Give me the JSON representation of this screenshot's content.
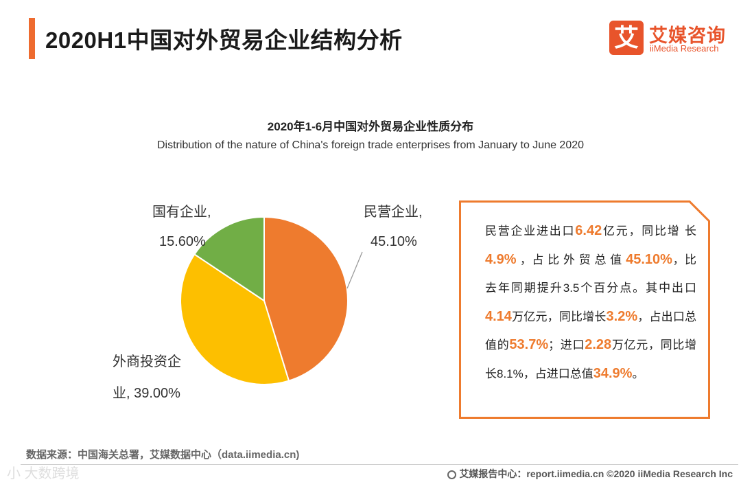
{
  "header": {
    "title": "2020H1中国对外贸易企业结构分析",
    "logo_mark": "艾",
    "logo_cn": "艾媒咨询",
    "logo_en": "iiMedia Research",
    "accent_color": "#ee6b2f"
  },
  "chart_data": {
    "type": "pie",
    "title": "2020年1-6月中国对外贸易企业性质分布",
    "subtitle": "Distribution of the nature of China's foreign trade enterprises from January to June 2020",
    "slices": [
      {
        "label": "民营企业,",
        "value": 45.1,
        "value_label": "45.10%",
        "color": "#ee7b2e"
      },
      {
        "label": "外商投资企",
        "label2": "业, 39.00%",
        "value": 39.0,
        "color": "#fdbf00"
      },
      {
        "label": "国有企业,",
        "value": 15.6,
        "value_label": "15.60%",
        "color": "#71ae46"
      }
    ]
  },
  "textbox": {
    "segments": [
      {
        "t": "民营企业进出口",
        "h": false
      },
      {
        "t": "6.42",
        "h": true
      },
      {
        "t": "亿元，同比增 长 ",
        "h": false
      },
      {
        "t": "4.9%",
        "h": true
      },
      {
        "t": " ，占 比 外 贸 总 值 ",
        "h": false
      },
      {
        "t": "45.10%",
        "h": true
      },
      {
        "t": "，比去年同期提升3.5个百分点。其中出口",
        "h": false
      },
      {
        "t": "4.14",
        "h": true
      },
      {
        "t": "万亿元，同比增长",
        "h": false
      },
      {
        "t": "3.2%",
        "h": true
      },
      {
        "t": "，占出口总值的",
        "h": false
      },
      {
        "t": "53.7%",
        "h": true
      },
      {
        "t": "；进口",
        "h": false
      },
      {
        "t": "2.28",
        "h": true
      },
      {
        "t": "万亿元，同比增长8.1%，占进口总值",
        "h": false
      },
      {
        "t": "34.9%",
        "h": true
      },
      {
        "t": "。",
        "h": false
      }
    ],
    "border_color": "#ee7b2e"
  },
  "footer": {
    "source": "数据来源：中国海关总署，艾媒数据中心（data.iimedia.cn)",
    "report": "艾媒报告中心：report.iimedia.cn ©2020 iiMedia Research Inc",
    "watermark": "小 大数跨境"
  }
}
